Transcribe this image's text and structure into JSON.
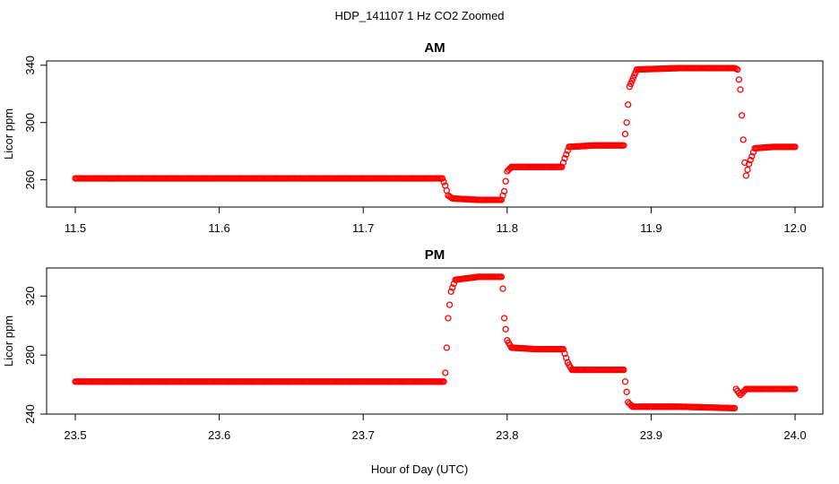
{
  "figure": {
    "title": "HDP_141107  1 Hz CO2 Zoomed",
    "xlabel": "Hour of Day (UTC)"
  },
  "colors": {
    "points": "#ff0000",
    "axes": "#000000"
  },
  "chart_data": [
    {
      "type": "scatter",
      "title": "AM",
      "xlabel": "",
      "ylabel": "Licor ppm",
      "xlim": [
        11.5,
        12.0
      ],
      "ylim": [
        241,
        343
      ],
      "xticks": [
        11.5,
        11.6,
        11.7,
        11.8,
        11.9,
        12.0
      ],
      "xtick_labels": [
        "11.5",
        "11.6",
        "11.7",
        "11.8",
        "11.9",
        "12.0"
      ],
      "yticks": [
        260,
        300,
        340
      ],
      "ytick_labels": [
        "260",
        "300",
        "340"
      ],
      "marker": "open-circle",
      "grid": false,
      "series": [
        {
          "points": [
            [
              11.5,
              261
            ],
            [
              11.6,
              261
            ],
            [
              11.7,
              261
            ],
            [
              11.755,
              261
            ],
            [
              11.757,
              256
            ],
            [
              11.759,
              249
            ],
            [
              11.762,
              247
            ],
            [
              11.78,
              246
            ],
            [
              11.796,
              246
            ],
            [
              11.798,
              252
            ],
            [
              11.8,
              266
            ],
            [
              11.803,
              269
            ],
            [
              11.82,
              269
            ],
            [
              11.838,
              269
            ],
            [
              11.84,
              275
            ],
            [
              11.843,
              283
            ],
            [
              11.86,
              284
            ],
            [
              11.881,
              284
            ],
            [
              11.883,
              300
            ],
            [
              11.885,
              325
            ],
            [
              11.89,
              337
            ],
            [
              11.92,
              338
            ],
            [
              11.958,
              338
            ],
            [
              11.96,
              337
            ],
            [
              11.962,
              323
            ],
            [
              11.963,
              305
            ],
            [
              11.964,
              288
            ],
            [
              11.965,
              272
            ],
            [
              11.966,
              263
            ],
            [
              11.968,
              271
            ],
            [
              11.972,
              282
            ],
            [
              11.985,
              283
            ],
            [
              12.0,
              283
            ]
          ]
        }
      ]
    },
    {
      "type": "scatter",
      "title": "PM",
      "xlabel": "",
      "ylabel": "Licor ppm",
      "xlim": [
        23.5,
        24.0
      ],
      "ylim": [
        240,
        339
      ],
      "xticks": [
        23.5,
        23.6,
        23.7,
        23.8,
        23.9,
        24.0
      ],
      "xtick_labels": [
        "23.5",
        "23.6",
        "23.7",
        "23.8",
        "23.9",
        "24.0"
      ],
      "yticks": [
        240,
        280,
        320
      ],
      "ytick_labels": [
        "240",
        "280",
        "320"
      ],
      "marker": "open-circle",
      "grid": false,
      "series": [
        {
          "points": [
            [
              23.5,
              262
            ],
            [
              23.6,
              262
            ],
            [
              23.7,
              262
            ],
            [
              23.756,
              262
            ],
            [
              23.757,
              268
            ],
            [
              23.758,
              285
            ],
            [
              23.759,
              305
            ],
            [
              23.761,
              323
            ],
            [
              23.764,
              331
            ],
            [
              23.78,
              333
            ],
            [
              23.796,
              333
            ],
            [
              23.797,
              325
            ],
            [
              23.798,
              305
            ],
            [
              23.8,
              290
            ],
            [
              23.803,
              285
            ],
            [
              23.82,
              284
            ],
            [
              23.839,
              284
            ],
            [
              23.842,
              275
            ],
            [
              23.845,
              270
            ],
            [
              23.86,
              270
            ],
            [
              23.881,
              270
            ],
            [
              23.882,
              262
            ],
            [
              23.884,
              248
            ],
            [
              23.887,
              245
            ],
            [
              23.92,
              245
            ],
            [
              23.958,
              244
            ],
            [
              23.959,
              257
            ],
            [
              23.962,
              253
            ],
            [
              23.966,
              257
            ],
            [
              23.98,
              257
            ],
            [
              24.0,
              257
            ]
          ]
        }
      ]
    }
  ]
}
